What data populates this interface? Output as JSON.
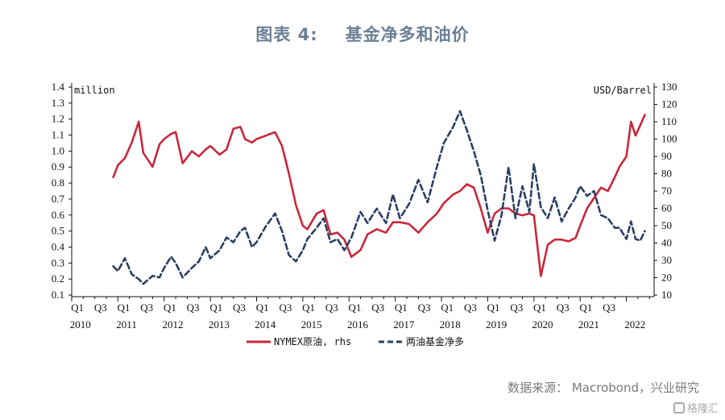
{
  "header": {
    "title_prefix": "图表 4:",
    "title_main": "基金净多和油价"
  },
  "footer": {
    "source": "数据来源： Macrobond，兴业研究",
    "watermark": "格隆汇"
  },
  "chart_data": {
    "type": "line",
    "left_axis": {
      "unit": "million",
      "ylim": [
        0.1,
        1.4
      ],
      "ticks": [
        "0.1",
        "0.2",
        "0.3",
        "0.4",
        "0.5",
        "0.6",
        "0.7",
        "0.8",
        "0.9",
        "1.0",
        "1.1",
        "1.2",
        "1.3",
        "1.4"
      ]
    },
    "right_axis": {
      "unit": "USD/Barrel",
      "ylim": [
        10,
        130
      ],
      "ticks": [
        "10",
        "20",
        "30",
        "40",
        "50",
        "60",
        "70",
        "80",
        "90",
        "100",
        "110",
        "120",
        "130"
      ]
    },
    "x_axis": {
      "quarter_labels": [
        "Q1",
        "Q3",
        "Q1",
        "Q3",
        "Q1",
        "Q3",
        "Q1",
        "Q3",
        "Q1",
        "Q3",
        "Q1",
        "Q3",
        "Q1",
        "Q3",
        "Q1",
        "Q3",
        "Q1",
        "Q3",
        "Q1",
        "Q3",
        "Q1",
        "Q3",
        "Q1",
        "Q3"
      ],
      "year_labels": [
        "2010",
        "2011",
        "2012",
        "2013",
        "2014",
        "2015",
        "2016",
        "2017",
        "2018",
        "2019",
        "2020",
        "2021",
        "2022"
      ]
    },
    "series": [
      {
        "name": "NYMEX原油, rhs",
        "axis": "right",
        "color": "#c8283c",
        "style": "solid",
        "x": [
          2010.9,
          2011.0,
          2011.15,
          2011.3,
          2011.45,
          2011.55,
          2011.75,
          2011.9,
          2012.0,
          2012.15,
          2012.25,
          2012.4,
          2012.6,
          2012.75,
          2012.9,
          2013.0,
          2013.2,
          2013.35,
          2013.5,
          2013.65,
          2013.75,
          2013.9,
          2014.0,
          2014.2,
          2014.4,
          2014.55,
          2014.7,
          2014.85,
          2015.0,
          2015.1,
          2015.3,
          2015.45,
          2015.6,
          2015.75,
          2015.9,
          2016.05,
          2016.25,
          2016.4,
          2016.6,
          2016.8,
          2016.95,
          2017.1,
          2017.3,
          2017.5,
          2017.7,
          2017.9,
          2018.05,
          2018.25,
          2018.4,
          2018.55,
          2018.7,
          2018.85,
          2019.0,
          2019.15,
          2019.3,
          2019.45,
          2019.6,
          2019.75,
          2019.9,
          2020.0,
          2020.15,
          2020.3,
          2020.45,
          2020.6,
          2020.75,
          2020.9,
          2021.0,
          2021.15,
          2021.3,
          2021.45,
          2021.6,
          2021.75,
          2021.85,
          2022.0,
          2022.1,
          2022.2,
          2022.3,
          2022.4
        ],
        "values": [
          78,
          85,
          89,
          98,
          110,
          92,
          84,
          97,
          100,
          103,
          104,
          86,
          93,
          90,
          94,
          96,
          91,
          94,
          106,
          107,
          100,
          98,
          100,
          102,
          104,
          96,
          80,
          62,
          50,
          48,
          57,
          59,
          45,
          46,
          42,
          32,
          36,
          45,
          48,
          46,
          52,
          52,
          51,
          46,
          52,
          57,
          63,
          68,
          70,
          74,
          72,
          60,
          46,
          57,
          60,
          60,
          57,
          56,
          57,
          56,
          21,
          39,
          42,
          42,
          41,
          43,
          50,
          60,
          66,
          72,
          70,
          78,
          84,
          90,
          110,
          102,
          108,
          114
        ]
      },
      {
        "name": "两油基金净多",
        "axis": "left",
        "color": "#2b3f63",
        "style": "dashed",
        "x": [
          2010.9,
          2011.0,
          2011.15,
          2011.3,
          2011.45,
          2011.55,
          2011.75,
          2011.9,
          2012.0,
          2012.15,
          2012.25,
          2012.4,
          2012.6,
          2012.75,
          2012.9,
          2013.0,
          2013.2,
          2013.35,
          2013.5,
          2013.65,
          2013.75,
          2013.9,
          2014.0,
          2014.2,
          2014.4,
          2014.55,
          2014.7,
          2014.85,
          2015.0,
          2015.1,
          2015.3,
          2015.45,
          2015.6,
          2015.75,
          2015.9,
          2016.05,
          2016.25,
          2016.4,
          2016.6,
          2016.8,
          2016.95,
          2017.1,
          2017.3,
          2017.5,
          2017.7,
          2017.9,
          2018.05,
          2018.25,
          2018.4,
          2018.55,
          2018.7,
          2018.85,
          2019.0,
          2019.15,
          2019.3,
          2019.45,
          2019.6,
          2019.75,
          2019.9,
          2020.0,
          2020.15,
          2020.3,
          2020.45,
          2020.6,
          2020.75,
          2020.9,
          2021.0,
          2021.15,
          2021.3,
          2021.45,
          2021.6,
          2021.75,
          2021.85,
          2022.0,
          2022.1,
          2022.2,
          2022.3,
          2022.4
        ],
        "values": [
          0.28,
          0.25,
          0.33,
          0.23,
          0.2,
          0.17,
          0.22,
          0.21,
          0.27,
          0.34,
          0.3,
          0.21,
          0.27,
          0.31,
          0.4,
          0.33,
          0.38,
          0.46,
          0.43,
          0.5,
          0.52,
          0.4,
          0.43,
          0.53,
          0.61,
          0.5,
          0.35,
          0.31,
          0.38,
          0.45,
          0.52,
          0.58,
          0.43,
          0.45,
          0.38,
          0.46,
          0.62,
          0.55,
          0.64,
          0.55,
          0.73,
          0.58,
          0.67,
          0.82,
          0.68,
          0.9,
          1.05,
          1.15,
          1.25,
          1.13,
          1.0,
          0.85,
          0.63,
          0.44,
          0.6,
          0.9,
          0.58,
          0.78,
          0.62,
          0.92,
          0.65,
          0.58,
          0.71,
          0.56,
          0.64,
          0.71,
          0.78,
          0.72,
          0.75,
          0.6,
          0.58,
          0.52,
          0.52,
          0.45,
          0.56,
          0.45,
          0.44,
          0.5
        ]
      }
    ],
    "legend": {
      "placement": "bottom",
      "entries": [
        "NYMEX原油, rhs",
        "两油基金净多"
      ]
    }
  }
}
